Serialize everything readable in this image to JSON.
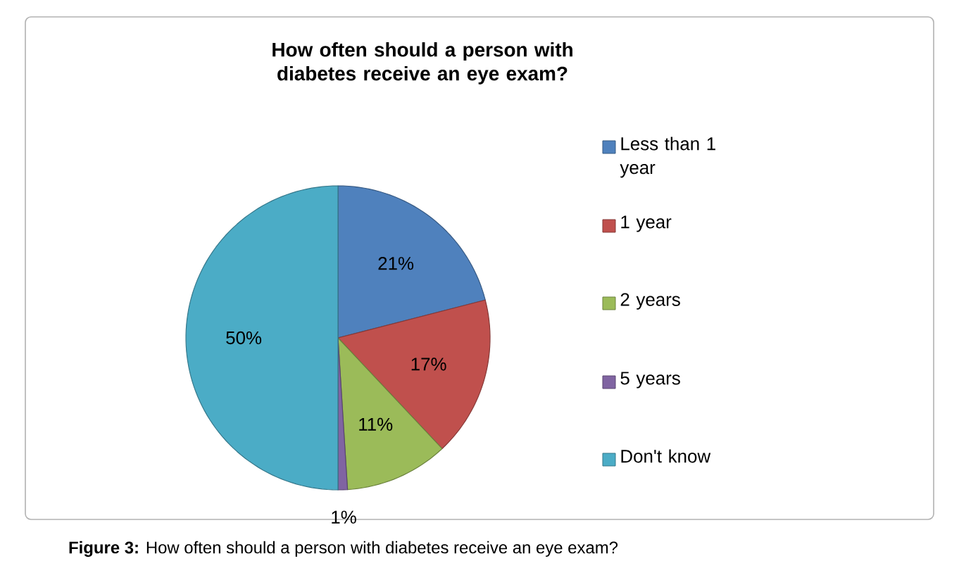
{
  "chart_data": {
    "type": "pie",
    "title": "How often should a person with diabetes receive an eye exam?",
    "categories": [
      "Less than 1 year",
      "1 year",
      "2 years",
      "5 years",
      "Don't know"
    ],
    "values": [
      21,
      17,
      11,
      1,
      50
    ],
    "colors": [
      "#4f81bd",
      "#c0504d",
      "#9bbb59",
      "#8064a2",
      "#4bacc6"
    ],
    "value_labels": [
      "21%",
      "17%",
      "11%",
      "1%",
      "50%"
    ],
    "legend": "right",
    "annotations": [
      "**Figure 3:** How often should a person with diabetes receive an eye exam?"
    ]
  }
}
